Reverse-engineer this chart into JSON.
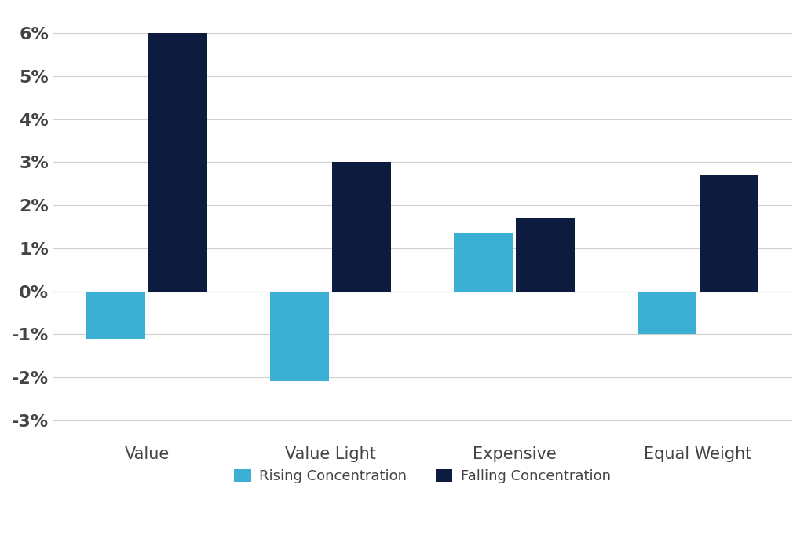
{
  "categories": [
    "Value",
    "Value Light",
    "Expensive",
    "Equal Weight"
  ],
  "rising_concentration": [
    -0.011,
    -0.021,
    0.0135,
    -0.01
  ],
  "falling_concentration": [
    0.06,
    0.03,
    0.017,
    0.027
  ],
  "rising_color": "#3BAFD4",
  "falling_color": "#0D1B3E",
  "background_color": "#FFFFFF",
  "grid_color": "#D0D0D0",
  "ylim": [
    -0.033,
    0.065
  ],
  "yticks": [
    -0.03,
    -0.02,
    -0.01,
    0.0,
    0.01,
    0.02,
    0.03,
    0.04,
    0.05,
    0.06
  ],
  "legend_rising": "Rising Concentration",
  "legend_falling": "Falling Concentration",
  "bar_width": 0.32,
  "figsize": [
    10.24,
    7.1
  ],
  "dpi": 100,
  "tick_fontsize": 16,
  "label_fontsize": 15,
  "legend_fontsize": 13
}
